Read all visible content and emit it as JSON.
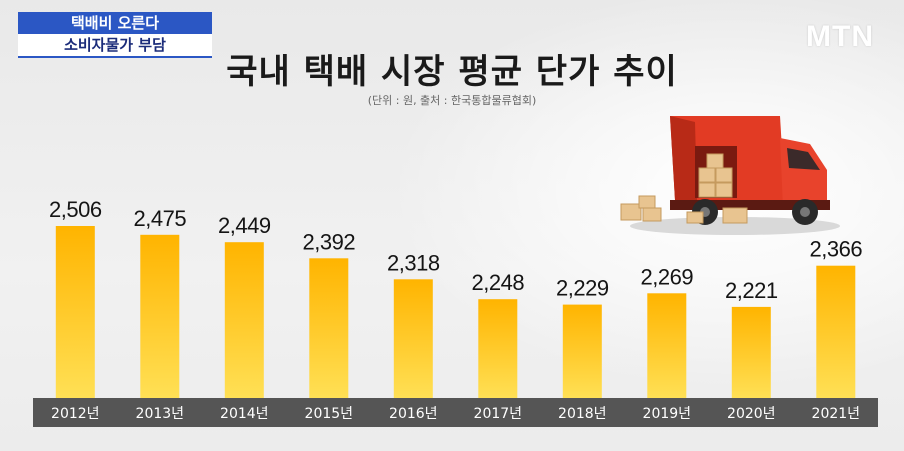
{
  "caption": {
    "line1": "택배비 오른다",
    "line2": "소비자물가 부담"
  },
  "logo": "MTN",
  "colors": {
    "bar_top": "#ffb400",
    "bar_bottom": "#ffe055",
    "axis_band": "#555555",
    "caption_blue": "#2b57c4",
    "truck_red": "#e23b24"
  },
  "chart_data": {
    "type": "bar",
    "title": "국내 택배 시장 평균 단가 추이",
    "subtitle": "(단위 : 원, 출처 : 한국통합물류협회)",
    "categories": [
      "2012년",
      "2013년",
      "2014년",
      "2015년",
      "2016년",
      "2017년",
      "2018년",
      "2019년",
      "2020년",
      "2021년"
    ],
    "values": [
      2506,
      2475,
      2449,
      2392,
      2318,
      2248,
      2229,
      2269,
      2221,
      2366
    ],
    "value_labels": [
      "2,506",
      "2,475",
      "2,449",
      "2,392",
      "2,318",
      "2,248",
      "2,229",
      "2,269",
      "2,221",
      "2,366"
    ],
    "xlabel": "",
    "ylabel": "",
    "ylim": [
      1900,
      2520
    ],
    "grid": false,
    "legend": "none"
  },
  "illustration": "delivery-truck-with-boxes"
}
